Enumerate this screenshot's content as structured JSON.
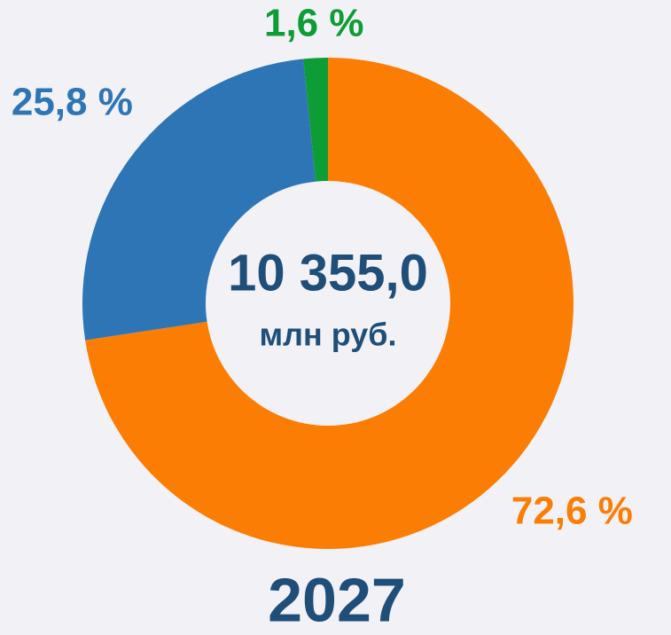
{
  "chart_data": {
    "type": "donut",
    "title": "2027",
    "center_text": "10 355,0",
    "center_subtext": "млн руб.",
    "categories": [
      null,
      null,
      null
    ],
    "values": [
      72.6,
      25.8,
      1.6
    ],
    "value_labels": [
      "72,6 %",
      "25,8 %",
      "1,6 %"
    ],
    "colors": [
      "#fb7d04",
      "#2e75b6",
      "#0e9c37"
    ]
  }
}
